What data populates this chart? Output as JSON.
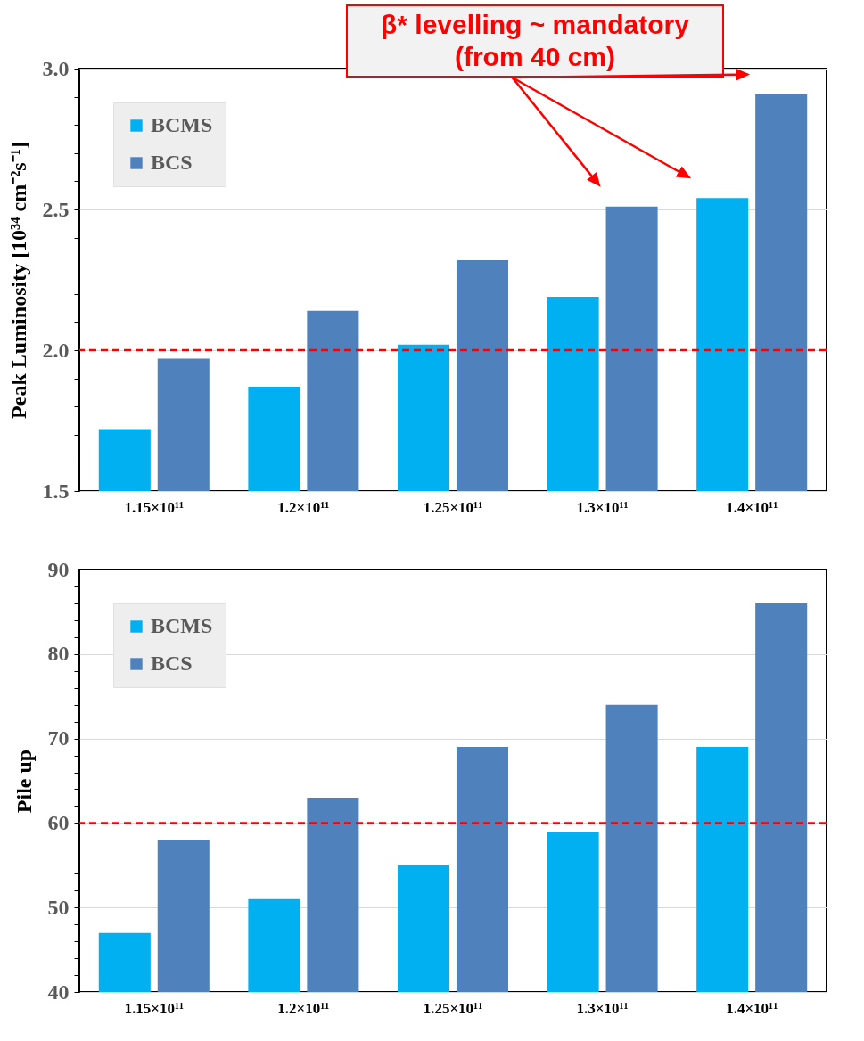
{
  "chart_data": [
    {
      "type": "bar",
      "ylabel": "Peak Luminosity [10³⁴ cm⁻²s⁻¹]",
      "annotations": [
        "β* levelling ~ mandatory (from 40 cm)"
      ],
      "categories": [
        "1.15×10¹¹",
        "1.2×10¹¹",
        "1.25×10¹¹",
        "1.3×10¹¹",
        "1.4×10¹¹"
      ],
      "series": [
        {
          "name": "BCMS",
          "color": "#00b0f0",
          "values": [
            1.72,
            1.87,
            2.02,
            2.19,
            2.54
          ]
        },
        {
          "name": "BCS",
          "color": "#4f81bd",
          "values": [
            1.97,
            2.14,
            2.32,
            2.51,
            2.91
          ]
        }
      ],
      "ylim": [
        1.5,
        3.0
      ],
      "yticks": [
        1.5,
        {
          "value": 1.6,
          "label": null
        },
        {
          "value": 1.7,
          "label": null
        },
        {
          "value": 1.8,
          "label": null
        },
        {
          "value": 1.9,
          "label": null
        },
        {
          "value": 2,
          "label": "2.0"
        },
        {
          "value": 2.1,
          "label": null
        },
        {
          "value": 2.2,
          "label": null
        },
        {
          "value": 2.3,
          "label": null
        },
        {
          "value": 2.4,
          "label": null
        },
        2.5,
        {
          "value": 2.6,
          "label": null
        },
        {
          "value": 2.7,
          "label": null
        },
        {
          "value": 2.8,
          "label": null
        },
        {
          "value": 2.9,
          "label": null
        },
        {
          "value": 3,
          "label": "3.0"
        }
      ],
      "ref_lines": [
        {
          "axis": "y",
          "value": 2,
          "color": "#ff0000",
          "line_style": "dashed"
        }
      ],
      "grid": "y",
      "legend": "top left"
    },
    {
      "type": "bar",
      "ylabel": "Pile up",
      "categories": [
        "1.15×10¹¹",
        "1.2×10¹¹",
        "1.25×10¹¹",
        "1.3×10¹¹",
        "1.4×10¹¹"
      ],
      "series": [
        {
          "name": "BCMS",
          "color": "#00b0f0",
          "values": [
            47,
            51,
            55,
            59,
            69
          ]
        },
        {
          "name": "BCS",
          "color": "#4f81bd",
          "values": [
            58,
            63,
            69,
            74,
            86
          ]
        }
      ],
      "ylim": [
        40,
        90
      ],
      "yticks": [
        40,
        {
          "value": 42,
          "label": null
        },
        {
          "value": 44,
          "label": null
        },
        {
          "value": 46,
          "label": null
        },
        {
          "value": 48,
          "label": null
        },
        50,
        {
          "value": 52,
          "label": null
        },
        {
          "value": 54,
          "label": null
        },
        {
          "value": 56,
          "label": null
        },
        {
          "value": 58,
          "label": null
        },
        60,
        {
          "value": 62,
          "label": null
        },
        {
          "value": 64,
          "label": null
        },
        {
          "value": 66,
          "label": null
        },
        {
          "value": 68,
          "label": null
        },
        70,
        {
          "value": 72,
          "label": null
        },
        {
          "value": 74,
          "label": null
        },
        {
          "value": 76,
          "label": null
        },
        {
          "value": 78,
          "label": null
        },
        80,
        {
          "value": 82,
          "label": null
        },
        {
          "value": 84,
          "label": null
        },
        {
          "value": 86,
          "label": null
        },
        {
          "value": 88,
          "label": null
        },
        90
      ],
      "ref_lines": [
        {
          "axis": "y",
          "value": 60,
          "color": "#ff0000",
          "line_style": "dashed"
        }
      ],
      "grid": "y",
      "legend": "top left"
    }
  ]
}
